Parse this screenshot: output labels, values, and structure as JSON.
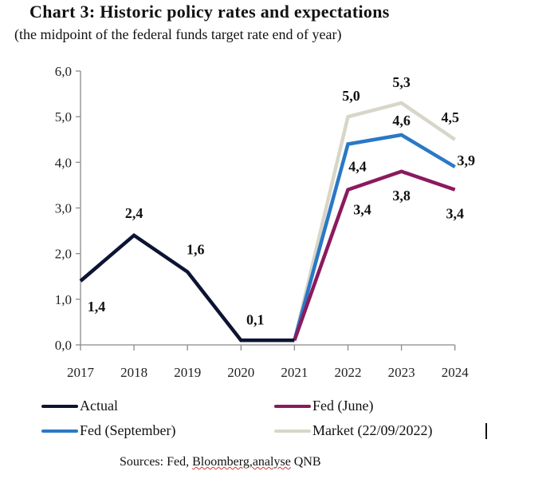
{
  "header": {
    "title": "Chart 3: Historic policy rates and expectations",
    "subtitle": "(the midpoint of the federal funds target rate end of year)"
  },
  "footer": {
    "source_prefix": "Sources: Fed, ",
    "source_underlined": "Bloomberg,analyse",
    "source_suffix": " QNB"
  },
  "chart_data": {
    "type": "line",
    "title": "Chart 3: Historic policy rates and expectations",
    "subtitle": "(the midpoint of the federal funds target rate end of year)",
    "xlabel": "",
    "ylabel": "",
    "x": [
      "2017",
      "2018",
      "2019",
      "2020",
      "2021",
      "2022",
      "2023",
      "2024"
    ],
    "ylim": [
      0,
      6
    ],
    "yticks": [
      "0,0",
      "1,0",
      "2,0",
      "3,0",
      "4,0",
      "5,0",
      "6,0"
    ],
    "grid": false,
    "legend_position": "bottom",
    "series": [
      {
        "name": "Actual",
        "color": "#0d1433",
        "values": [
          1.4,
          2.4,
          1.6,
          0.1,
          0.1,
          null,
          null,
          null
        ],
        "labels": [
          "1,4",
          "2,4",
          "1,6",
          "0,1",
          null,
          null,
          null,
          null
        ]
      },
      {
        "name": "Fed (June)",
        "color": "#8b1a5e",
        "values": [
          null,
          null,
          null,
          null,
          0.1,
          3.4,
          3.8,
          3.4
        ],
        "labels": [
          null,
          null,
          null,
          null,
          null,
          "3,4",
          "3,8",
          "3,4"
        ]
      },
      {
        "name": "Fed (September)",
        "color": "#2a78c6",
        "values": [
          null,
          null,
          null,
          null,
          0.1,
          4.4,
          4.6,
          3.9
        ],
        "labels": [
          null,
          null,
          null,
          null,
          null,
          "4,4",
          "4,6",
          "3,9"
        ]
      },
      {
        "name": "Market (22/09/2022)",
        "color": "#d8d6c8",
        "values": [
          null,
          null,
          null,
          null,
          0.1,
          5.0,
          5.3,
          4.5
        ],
        "labels": [
          null,
          null,
          null,
          null,
          null,
          "5,0",
          "5,3",
          "4,5"
        ]
      }
    ]
  }
}
